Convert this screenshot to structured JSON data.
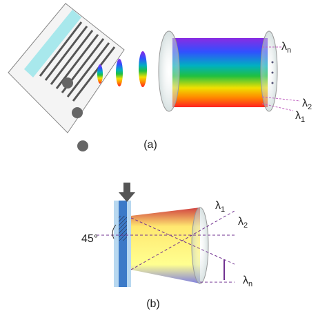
{
  "panel_a": {
    "caption": "(a)",
    "labels": [
      {
        "symbol": "λ",
        "sub": "n"
      },
      {
        "symbol": "λ",
        "sub": "2"
      },
      {
        "symbol": "λ",
        "sub": "1"
      }
    ]
  },
  "panel_b": {
    "caption": "(b)",
    "angle": "45°",
    "labels": [
      {
        "symbol": "λ",
        "sub": "1"
      },
      {
        "symbol": "λ",
        "sub": "2"
      },
      {
        "symbol": "λ",
        "sub": "n"
      }
    ]
  }
}
